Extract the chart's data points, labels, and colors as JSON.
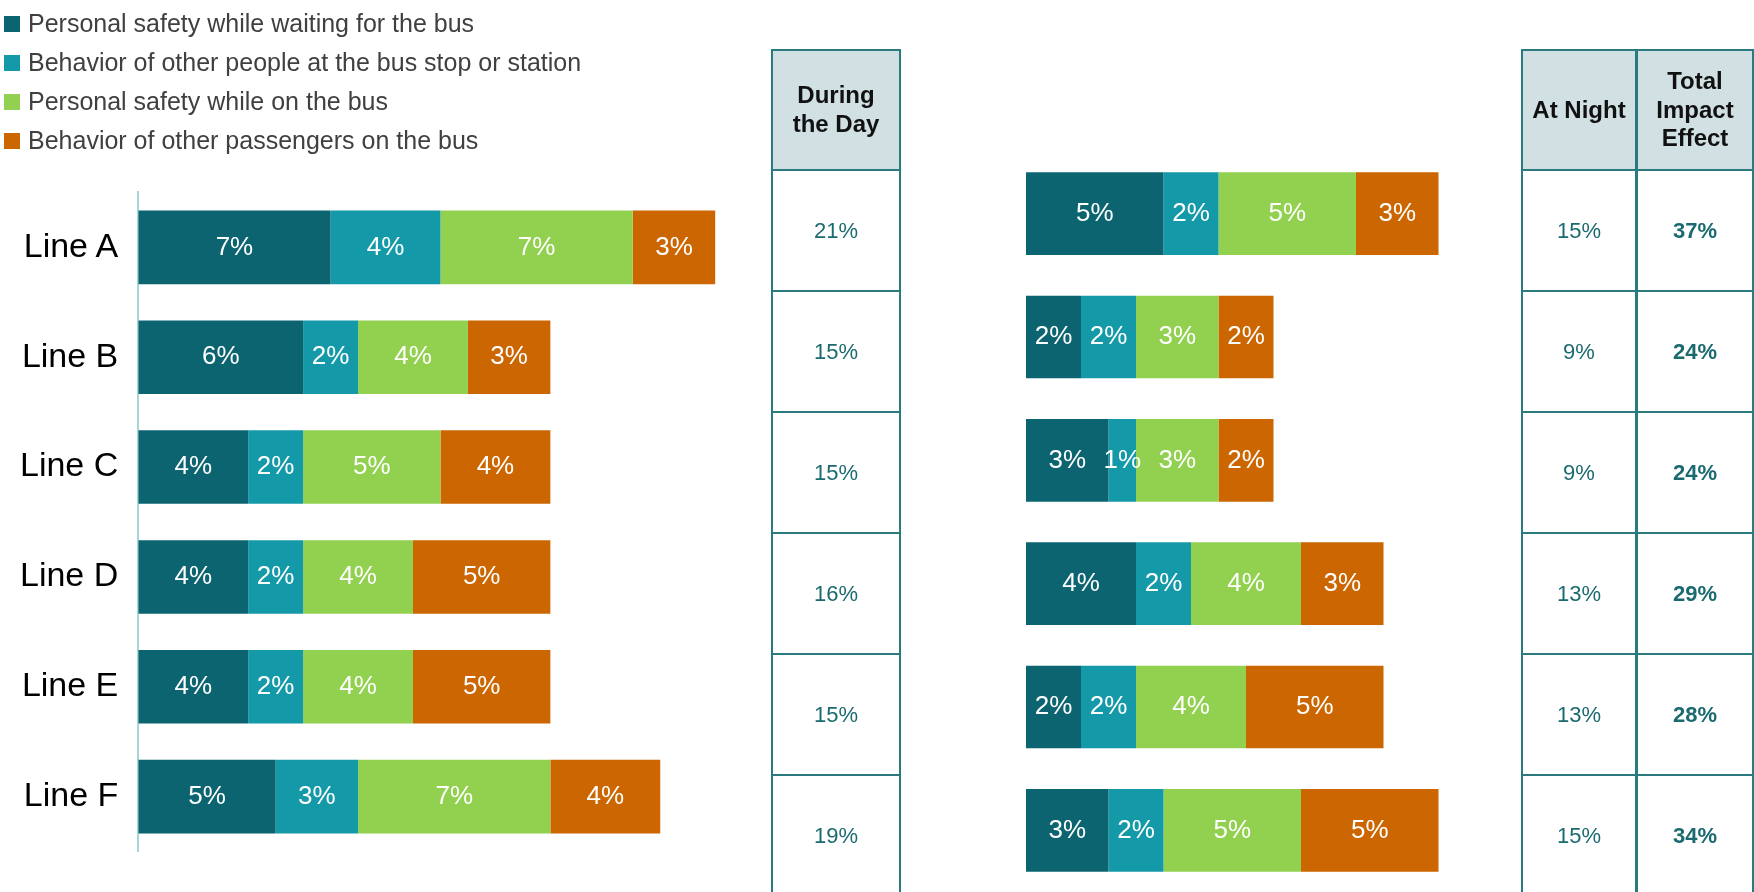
{
  "chart_data": [
    {
      "type": "bar",
      "orientation": "horizontal",
      "stacked": true,
      "legend": "top left",
      "categories": [
        "Line A",
        "Line B",
        "Line C",
        "Line D",
        "Line E",
        "Line F"
      ],
      "series": [
        {
          "name": "Personal safety while waiting for the bus",
          "color": "#0b6470",
          "values": [
            7,
            6,
            4,
            4,
            4,
            5
          ],
          "value_labels": [
            "7%",
            "6%",
            "4%",
            "4%",
            "4%",
            "5%"
          ]
        },
        {
          "name": "Behavior of other people at the bus stop or station",
          "color": "#1499a8",
          "values": [
            4,
            2,
            2,
            2,
            2,
            3
          ],
          "value_labels": [
            "4%",
            "2%",
            "2%",
            "2%",
            "2%",
            "3%"
          ]
        },
        {
          "name": "Personal safety while on the bus",
          "color": "#92d050",
          "values": [
            7,
            4,
            5,
            4,
            4,
            7
          ],
          "value_labels": [
            "7%",
            "4%",
            "5%",
            "4%",
            "4%",
            "7%"
          ]
        },
        {
          "name": "Behavior of other passengers on the bus",
          "color": "#cc6600",
          "values": [
            3,
            3,
            4,
            5,
            5,
            4
          ],
          "value_labels": [
            "3%",
            "3%",
            "4%",
            "5%",
            "5%",
            "4%"
          ]
        }
      ]
    },
    {
      "type": "other",
      "title": "During the Day",
      "annotations": [
        "21%",
        "15%",
        "15%",
        "16%",
        "15%",
        "19%"
      ]
    },
    {
      "type": "bar",
      "orientation": "horizontal",
      "stacked": true,
      "categories": [
        null,
        null,
        null,
        null,
        null,
        null
      ],
      "series": [
        {
          "color": "#0b6470",
          "values": [
            5,
            2,
            3,
            4,
            2,
            3
          ],
          "value_labels": [
            "5%",
            "2%",
            "3%",
            "4%",
            "2%",
            "3%"
          ]
        },
        {
          "color": "#1499a8",
          "values": [
            2,
            2,
            1,
            2,
            2,
            2
          ],
          "value_labels": [
            "2%",
            "2%",
            "1%",
            "2%",
            "2%",
            "2%"
          ]
        },
        {
          "color": "#92d050",
          "values": [
            5,
            3,
            3,
            4,
            4,
            5
          ],
          "value_labels": [
            "5%",
            "3%",
            "3%",
            "4%",
            "4%",
            "5%"
          ]
        },
        {
          "color": "#cc6600",
          "values": [
            3,
            2,
            2,
            3,
            5,
            5
          ],
          "value_labels": [
            "3%",
            "2%",
            "2%",
            "3%",
            "5%",
            "5%"
          ]
        }
      ]
    },
    {
      "type": "other",
      "title": "At Night",
      "annotations": [
        "15%",
        "9%",
        "9%",
        "13%",
        "13%",
        "15%"
      ]
    },
    {
      "type": "other",
      "title": "Total Impact Effect",
      "annotations": [
        "37%",
        "24%",
        "24%",
        "29%",
        "28%",
        "34%"
      ]
    }
  ]
}
